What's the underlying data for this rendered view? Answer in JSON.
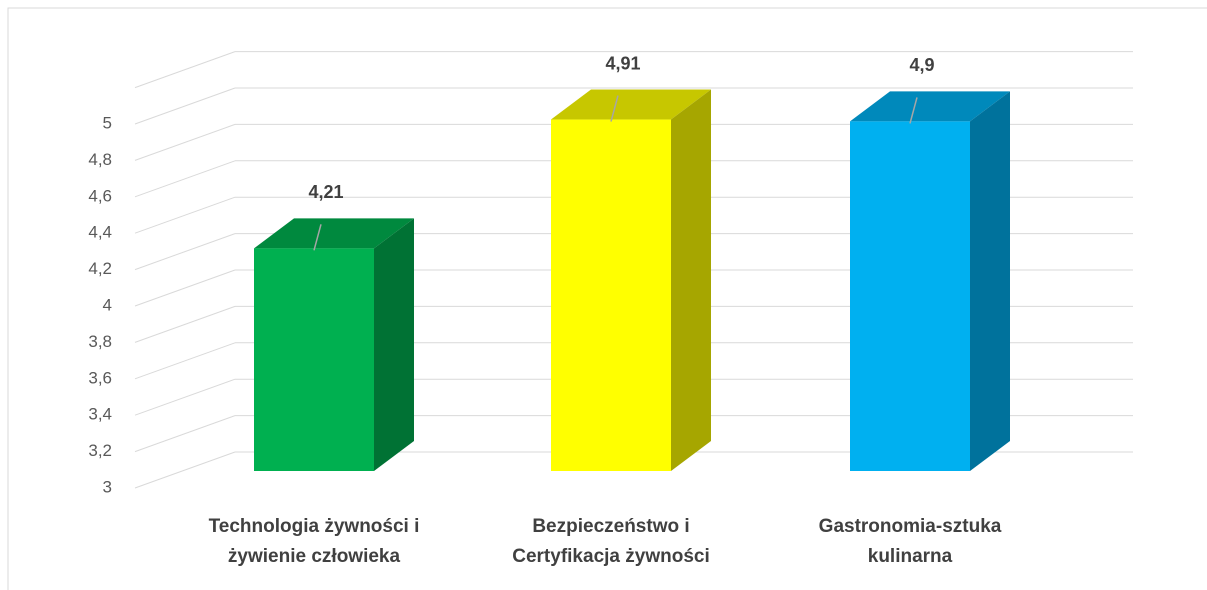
{
  "chart_data": {
    "type": "bar3d",
    "categories": [
      "Technologia żywności i żywienie człowieka",
      "Bezpieczeństwo i Certyfikacja żywności",
      "Gastronomia-sztuka kulinarna"
    ],
    "values": [
      4.21,
      4.91,
      4.9
    ],
    "value_labels": [
      "4,21",
      "4,91",
      "4,9"
    ],
    "colors": [
      "#00b050",
      "#ffff00",
      "#00b0f0"
    ],
    "ylim": [
      3,
      5.2
    ],
    "yticks": [
      3,
      {
        "value": 3.2,
        "label": "3,2"
      },
      {
        "value": 3.4,
        "label": "3,4"
      },
      {
        "value": 3.6,
        "label": "3,6"
      },
      {
        "value": 3.8,
        "label": "3,8"
      },
      4,
      {
        "value": 4.2,
        "label": "4,2"
      },
      {
        "value": 4.4,
        "label": "4,4"
      },
      {
        "value": 4.6,
        "label": "4,6"
      },
      {
        "value": 4.8,
        "label": "4,8"
      },
      5
    ],
    "grid": true
  }
}
